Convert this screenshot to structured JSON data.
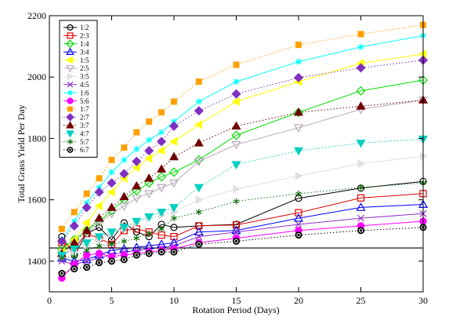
{
  "chart_data": {
    "type": "line",
    "xlabel": "Rotation Period (Days)",
    "ylabel": "Total Grass Yield Per Day",
    "xlim": [
      0,
      30
    ],
    "ylim": [
      1300,
      2200
    ],
    "xticks": [
      0,
      5,
      10,
      15,
      20,
      25,
      30
    ],
    "yticks": [
      1400,
      1600,
      1800,
      2000,
      2200
    ],
    "x": [
      1,
      2,
      3,
      4,
      5,
      6,
      7,
      8,
      9,
      10,
      12,
      15,
      20,
      25,
      30
    ],
    "reference_line": 1443,
    "legend_position": "top-left",
    "series": [
      {
        "name": "1:2",
        "color": "#000000",
        "marker": "circle-open",
        "line": "solid",
        "values": [
          1480,
          1420,
          1490,
          1510,
          1470,
          1525,
          1495,
          1480,
          1520,
          1510,
          1515,
          1520,
          1605,
          1638,
          1660
        ]
      },
      {
        "name": "2:3",
        "color": "#e00000",
        "marker": "square-open",
        "line": "solid",
        "values": [
          1460,
          1440,
          1490,
          1475,
          1455,
          1500,
          1505,
          1495,
          1485,
          1480,
          1515,
          1518,
          1558,
          1606,
          1620
        ]
      },
      {
        "name": "1:4",
        "color": "#00dd00",
        "marker": "diamond-open",
        "line": "solid",
        "values": [
          1440,
          1470,
          1500,
          1530,
          1565,
          1600,
          1630,
          1655,
          1675,
          1690,
          1730,
          1810,
          1885,
          1955,
          1990
        ]
      },
      {
        "name": "3:4",
        "color": "#0000ff",
        "marker": "triangle-up-open",
        "line": "solid",
        "values": [
          1410,
          1400,
          1405,
          1420,
          1435,
          1440,
          1445,
          1450,
          1455,
          1460,
          1495,
          1500,
          1540,
          1575,
          1585
        ]
      },
      {
        "name": "1:5",
        "color": "#ffff00",
        "marker": "triangle-left-filled",
        "line": "solid",
        "values": [
          1430,
          1470,
          1525,
          1580,
          1625,
          1670,
          1705,
          1735,
          1760,
          1790,
          1845,
          1920,
          1985,
          2045,
          2075
        ]
      },
      {
        "name": "2:5",
        "color": "#b8a8b8",
        "marker": "triangle-down-open",
        "line": "solid",
        "values": [
          1415,
          1450,
          1490,
          1525,
          1555,
          1580,
          1605,
          1620,
          1640,
          1655,
          1725,
          1780,
          1835,
          1895,
          1925
        ]
      },
      {
        "name": "3:5",
        "color": "#e0e0e0",
        "marker": "triangle-right-filled",
        "line": "solid",
        "values": [
          1420,
          1430,
          1450,
          1470,
          1490,
          1510,
          1525,
          1540,
          1550,
          1560,
          1600,
          1635,
          1678,
          1718,
          1742
        ]
      },
      {
        "name": "4:5",
        "color": "#9030c0",
        "marker": "x",
        "line": "solid",
        "values": [
          1400,
          1390,
          1400,
          1410,
          1420,
          1430,
          1435,
          1440,
          1445,
          1450,
          1480,
          1495,
          1520,
          1540,
          1555
        ]
      },
      {
        "name": "1:6",
        "color": "#00ffff",
        "marker": "star",
        "line": "solid",
        "values": [
          1470,
          1530,
          1590,
          1640,
          1690,
          1730,
          1765,
          1795,
          1820,
          1855,
          1920,
          1985,
          2050,
          2098,
          2135
        ]
      },
      {
        "name": "5:6",
        "color": "#ff00ff",
        "marker": "circle-filled",
        "line": "solid",
        "values": [
          1345,
          1390,
          1420,
          1425,
          1415,
          1420,
          1425,
          1430,
          1435,
          1440,
          1460,
          1475,
          1500,
          1515,
          1530
        ]
      },
      {
        "name": "1:7",
        "color": "#ffa000",
        "marker": "square-filled",
        "line": "dotted",
        "values": [
          1505,
          1560,
          1620,
          1670,
          1730,
          1770,
          1820,
          1855,
          1885,
          1920,
          1985,
          2040,
          2105,
          2140,
          2170
        ]
      },
      {
        "name": "2:7",
        "color": "#8030c0",
        "marker": "diamond-filled",
        "line": "dotted",
        "values": [
          1465,
          1515,
          1575,
          1625,
          1655,
          1685,
          1725,
          1760,
          1790,
          1840,
          1890,
          1945,
          1998,
          2030,
          2055
        ]
      },
      {
        "name": "3:7",
        "color": "#700000",
        "marker": "triangle-up-filled",
        "line": "dotted",
        "values": [
          1425,
          1460,
          1500,
          1540,
          1575,
          1610,
          1645,
          1670,
          1700,
          1740,
          1785,
          1840,
          1885,
          1905,
          1925
        ]
      },
      {
        "name": "4:7",
        "color": "#00d0c0",
        "marker": "triangle-down-filled",
        "line": "dotted",
        "values": [
          1420,
          1440,
          1460,
          1480,
          1495,
          1510,
          1530,
          1545,
          1560,
          1575,
          1640,
          1715,
          1760,
          1785,
          1798
        ]
      },
      {
        "name": "5:7",
        "color": "#107010",
        "marker": "asterisk",
        "line": "dotted",
        "values": [
          1410,
          1415,
          1435,
          1450,
          1455,
          1465,
          1475,
          1490,
          1505,
          1540,
          1560,
          1595,
          1620,
          1640,
          1655
        ]
      },
      {
        "name": "6:7",
        "color": "#000000",
        "marker": "bullseye",
        "line": "dotted",
        "values": [
          1360,
          1375,
          1380,
          1395,
          1400,
          1405,
          1420,
          1425,
          1430,
          1430,
          1455,
          1465,
          1485,
          1500,
          1510
        ]
      }
    ]
  }
}
